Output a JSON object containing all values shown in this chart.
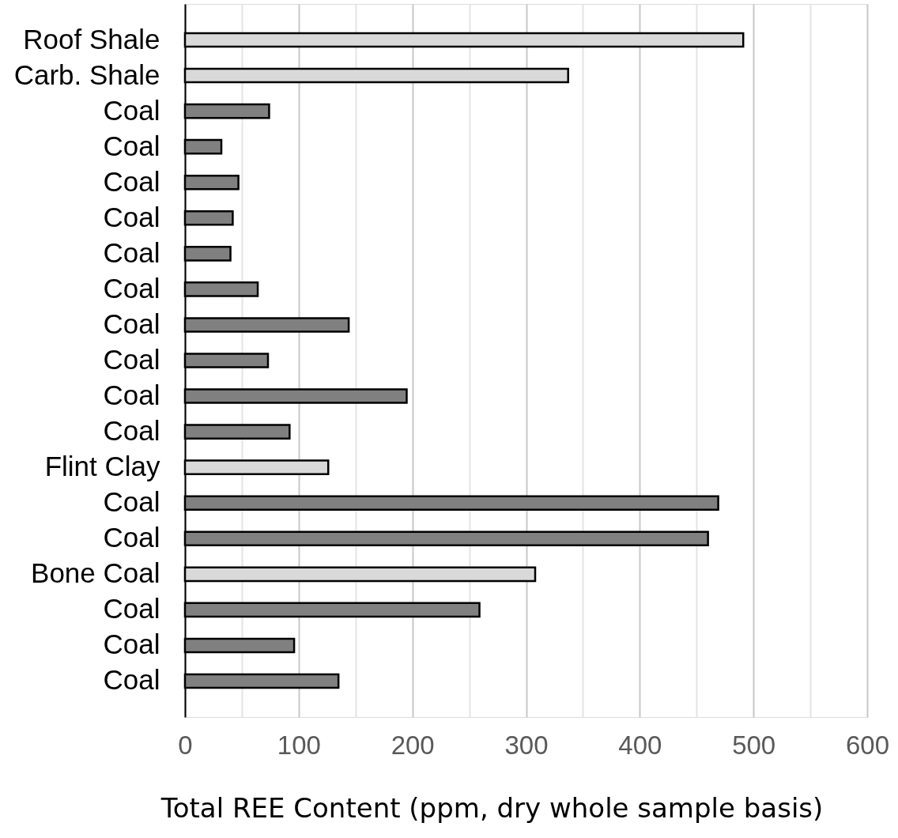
{
  "chart_data": {
    "type": "bar",
    "orientation": "horizontal",
    "xlabel": "Total REE Content (ppm, dry whole sample basis)",
    "categories": [
      "Roof Shale",
      "Carb. Shale",
      "Coal",
      "Coal",
      "Coal",
      "Coal",
      "Coal",
      "Coal",
      "Coal",
      "Coal",
      "Coal",
      "Coal",
      "Flint Clay",
      "Coal",
      "Coal",
      "Bone Coal",
      "Coal",
      "Coal",
      "Coal"
    ],
    "values": [
      491,
      337,
      74,
      32,
      47,
      42,
      40,
      64,
      144,
      73,
      195,
      92,
      126,
      469,
      460,
      308,
      259,
      96,
      135
    ],
    "colors": [
      "#d9d9d9",
      "#d9d9d9",
      "#808080",
      "#808080",
      "#808080",
      "#808080",
      "#808080",
      "#808080",
      "#808080",
      "#808080",
      "#808080",
      "#808080",
      "#d9d9d9",
      "#808080",
      "#808080",
      "#d9d9d9",
      "#808080",
      "#808080",
      "#808080"
    ],
    "xlim": [
      0,
      600
    ],
    "xticks": [
      0,
      {
        "value": 50,
        "label": null
      },
      100,
      {
        "value": 150,
        "label": null
      },
      200,
      {
        "value": 250,
        "label": null
      },
      300,
      {
        "value": 350,
        "label": null
      },
      400,
      {
        "value": 450,
        "label": null
      },
      500,
      {
        "value": 550,
        "label": null
      },
      600
    ],
    "grid": "x"
  }
}
